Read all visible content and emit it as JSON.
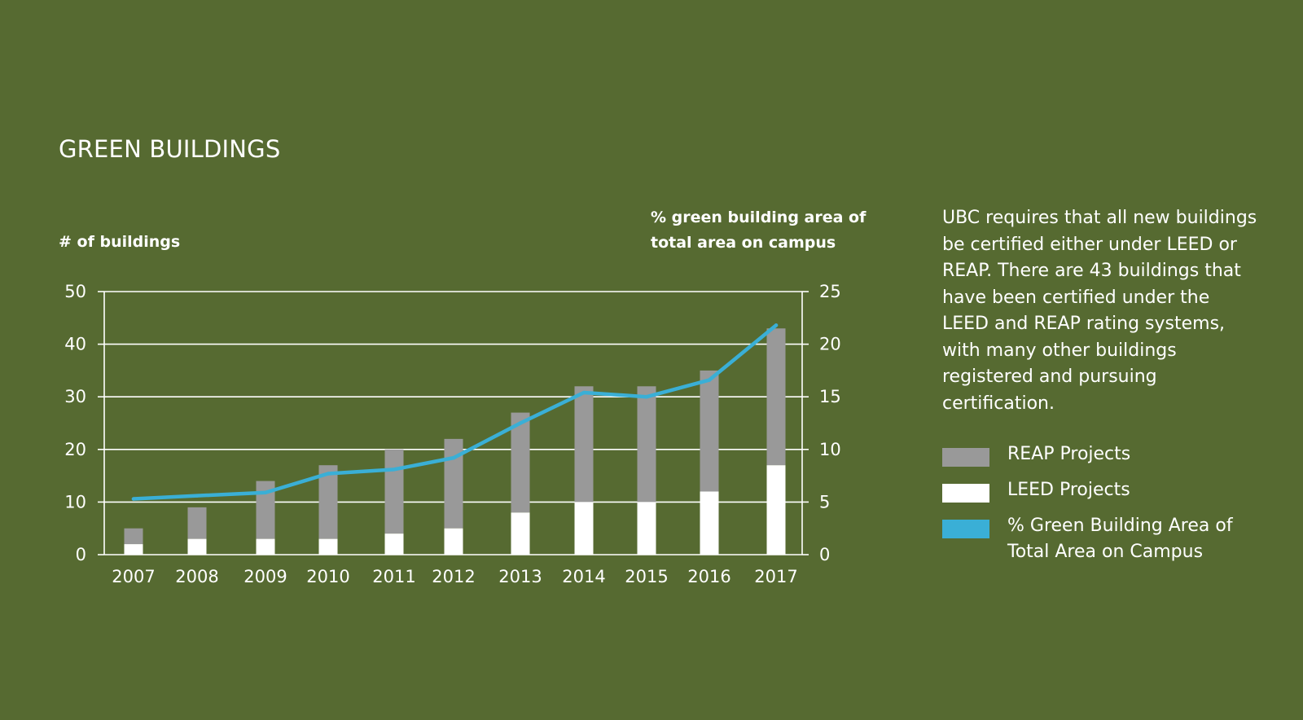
{
  "title": "GREEN BUILDINGS",
  "left_axis_title": "# of buildings",
  "right_axis_title_line1": "% green building area of",
  "right_axis_title_line2": "total area on campus",
  "description": "UBC requires that all new buildings be certified either under LEED or REAP. There are 43 buildings that have been certified under the LEED and REAP rating systems, with many other buildings registered and pursuing certification.",
  "legend": [
    {
      "label": "REAP Projects",
      "color": "#999999"
    },
    {
      "label": "LEED Projects",
      "color": "#ffffff"
    },
    {
      "label": "% Green Building Area of Total Area on Campus",
      "color": "#3aafd6"
    }
  ],
  "colors": {
    "background": "#566a31",
    "reap": "#999999",
    "leed": "#ffffff",
    "line": "#3aafd6",
    "grid": "#ffffff"
  },
  "chart_data": {
    "type": "bar",
    "title": "GREEN BUILDINGS",
    "categories": [
      "2007",
      "2008",
      "2009",
      "2010",
      "2011",
      "2012",
      "2013",
      "2014",
      "2015",
      "2016",
      "2017"
    ],
    "series": [
      {
        "name": "LEED Projects",
        "type": "bar",
        "stack": "buildings",
        "axis": "left",
        "values": [
          2,
          3,
          3,
          3,
          4,
          5,
          8,
          10,
          10,
          12,
          17
        ]
      },
      {
        "name": "REAP Projects",
        "type": "bar",
        "stack": "buildings",
        "axis": "left",
        "values": [
          3,
          6,
          11,
          14,
          16,
          17,
          19,
          22,
          22,
          23,
          26
        ]
      },
      {
        "name": "% Green Building Area of Total Area on Campus",
        "type": "line",
        "axis": "right",
        "values": [
          5.3,
          5.6,
          5.9,
          7.7,
          8.1,
          9.2,
          12.5,
          15.4,
          15.0,
          16.6,
          21.8
        ]
      }
    ],
    "ylabel": "# of buildings",
    "y2label": "% green building area of total area on campus",
    "ylim": [
      0,
      50
    ],
    "y2lim": [
      0,
      25
    ],
    "yticks": [
      "0",
      "10",
      "20",
      "30",
      "40",
      "50"
    ],
    "y2ticks": [
      "0",
      "5",
      "10",
      "15",
      "20",
      "25"
    ],
    "grid": true,
    "legend_position": "right"
  }
}
